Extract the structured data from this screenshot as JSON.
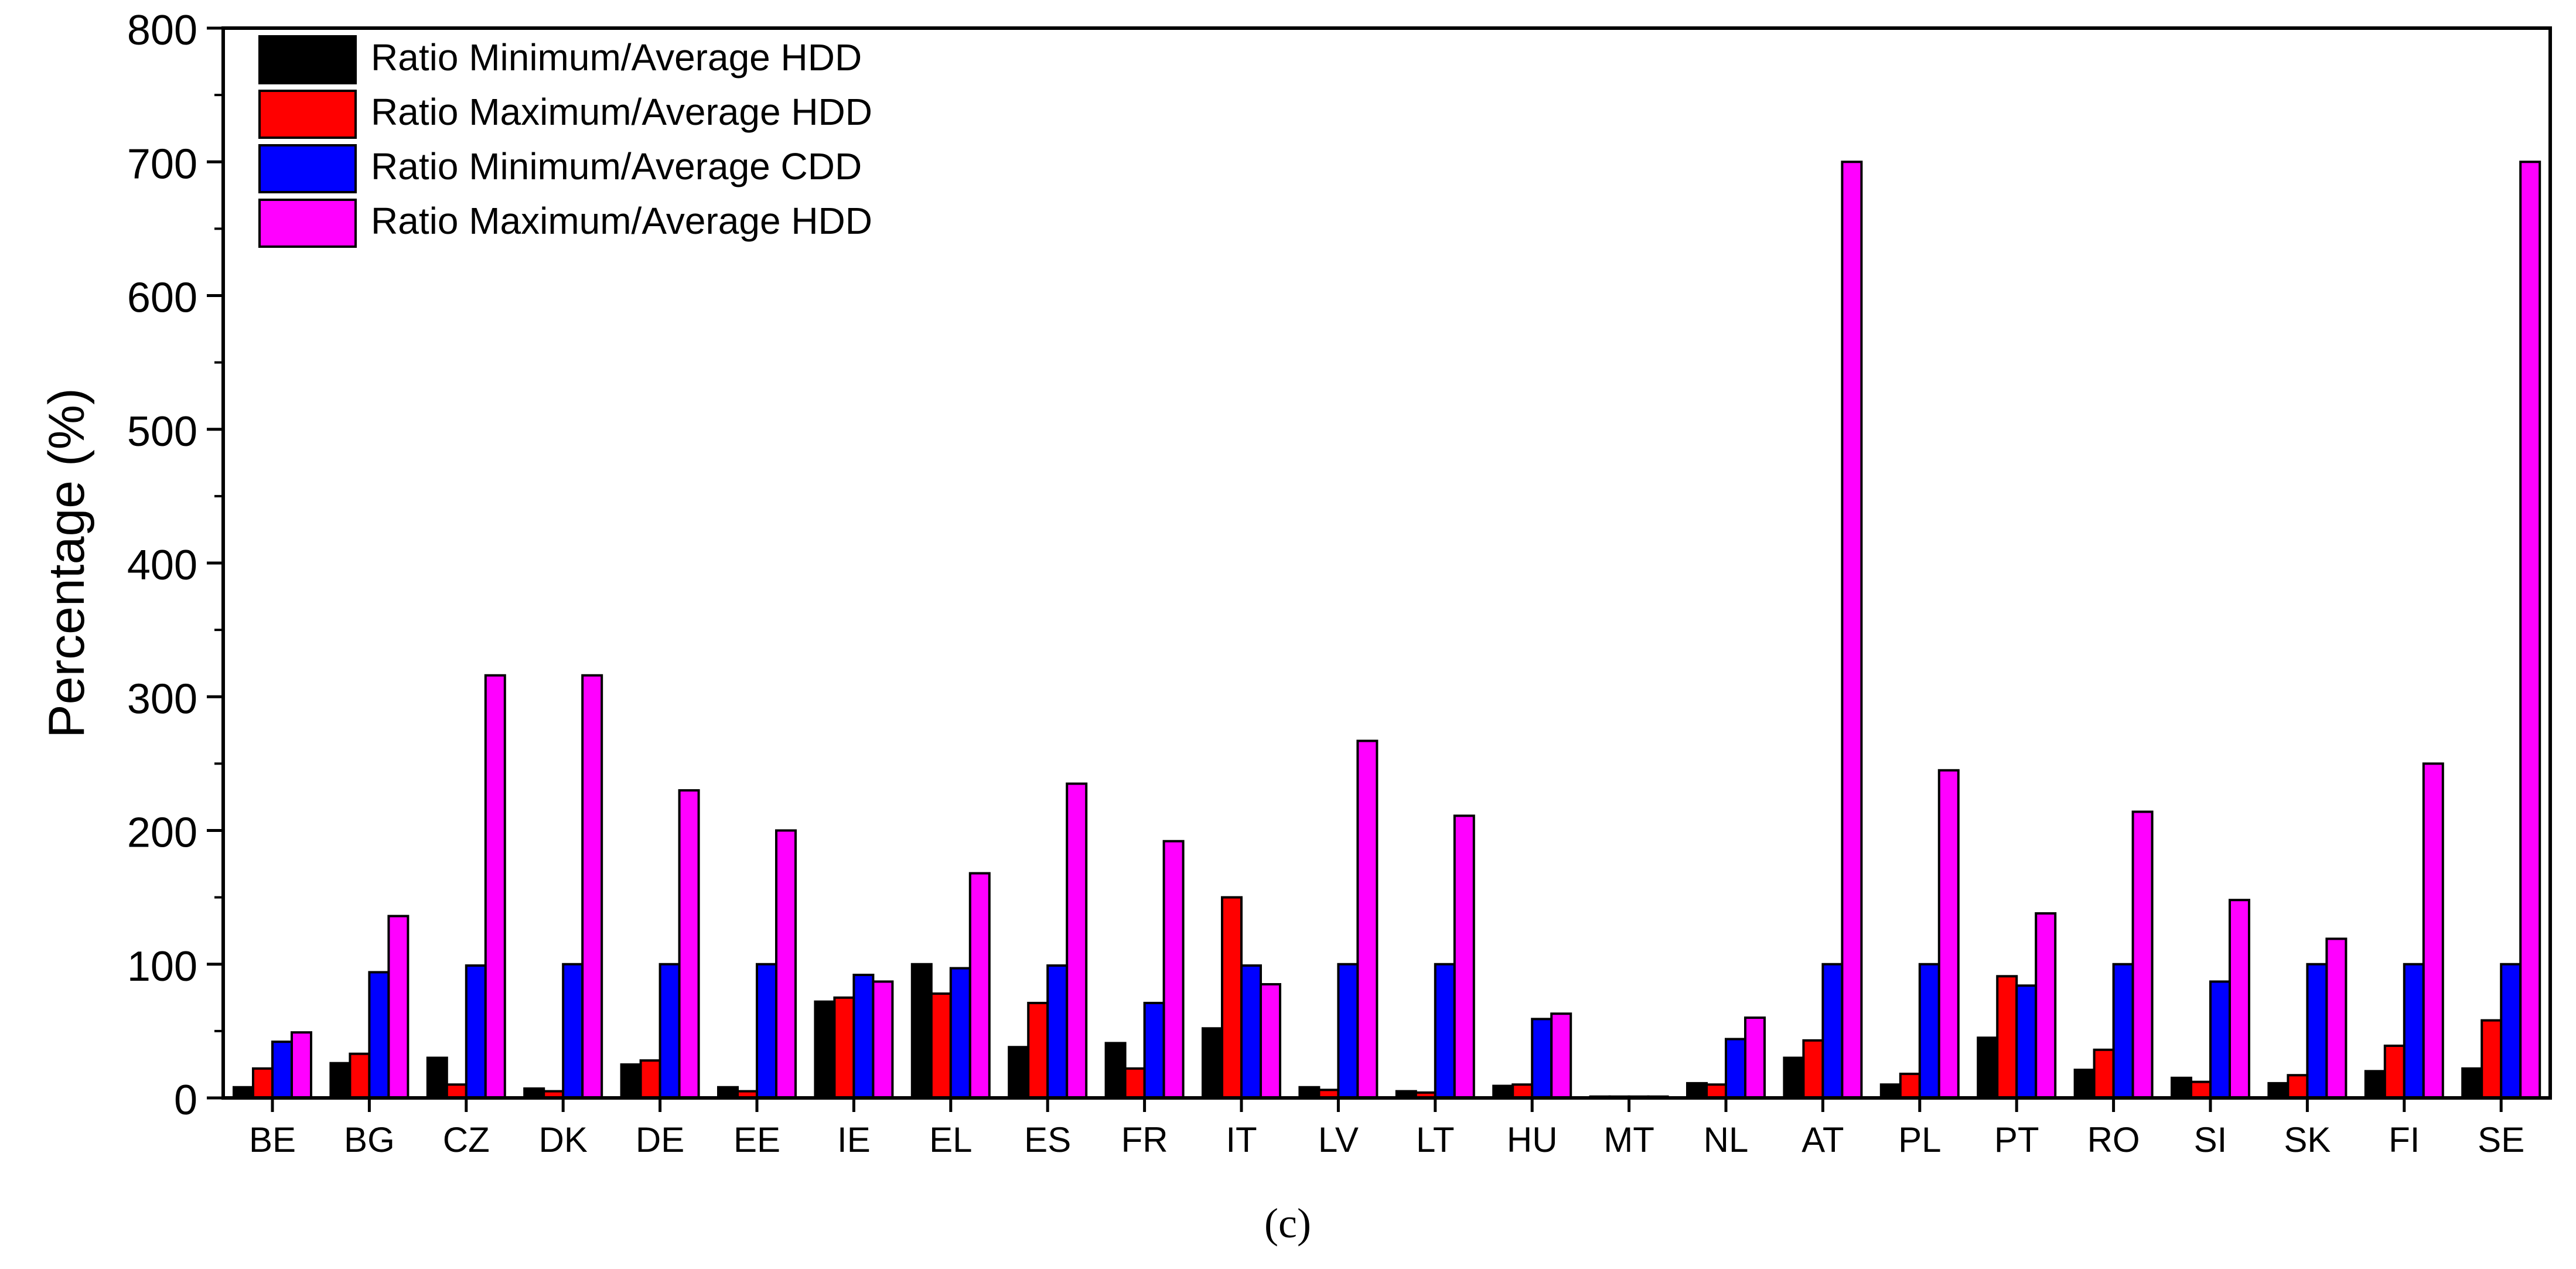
{
  "chart_data": {
    "type": "bar",
    "title": "",
    "xlabel": "",
    "ylabel": "Percentage (%)",
    "ylim": [
      0,
      800
    ],
    "yticks": [
      0,
      100,
      200,
      300,
      400,
      500,
      600,
      700,
      800
    ],
    "caption": "(c)",
    "legend_position": "top-left",
    "categories": [
      "BE",
      "BG",
      "CZ",
      "DK",
      "DE",
      "EE",
      "IE",
      "EL",
      "ES",
      "FR",
      "IT",
      "LV",
      "LT",
      "HU",
      "MT",
      "NL",
      "AT",
      "PL",
      "PT",
      "RO",
      "SI",
      "SK",
      "FI",
      "SE"
    ],
    "series": [
      {
        "name": "Ratio Minimum/Average HDD",
        "color": "#000000",
        "values": [
          8,
          26,
          30,
          7,
          25,
          8,
          72,
          100,
          38,
          41,
          52,
          8,
          5,
          9,
          1,
          11,
          30,
          10,
          45,
          21,
          15,
          11,
          20,
          22
        ]
      },
      {
        "name": "Ratio Maximum/Average HDD",
        "color": "#ff0000",
        "values": [
          22,
          33,
          10,
          5,
          28,
          5,
          75,
          78,
          71,
          22,
          150,
          6,
          4,
          10,
          1,
          10,
          43,
          18,
          91,
          36,
          12,
          17,
          39,
          58
        ]
      },
      {
        "name": "Ratio Minimum/Average CDD",
        "color": "#0000ff",
        "values": [
          42,
          94,
          99,
          100,
          100,
          100,
          92,
          97,
          99,
          71,
          99,
          100,
          100,
          59,
          1,
          44,
          100,
          100,
          84,
          100,
          87,
          100,
          100,
          100
        ]
      },
      {
        "name": "Ratio Maximum/Average HDD",
        "color": "#ff00ff",
        "values": [
          49,
          136,
          316,
          316,
          230,
          200,
          87,
          168,
          235,
          192,
          85,
          267,
          211,
          63,
          1,
          60,
          700,
          245,
          138,
          214,
          148,
          119,
          250,
          700
        ]
      }
    ]
  }
}
